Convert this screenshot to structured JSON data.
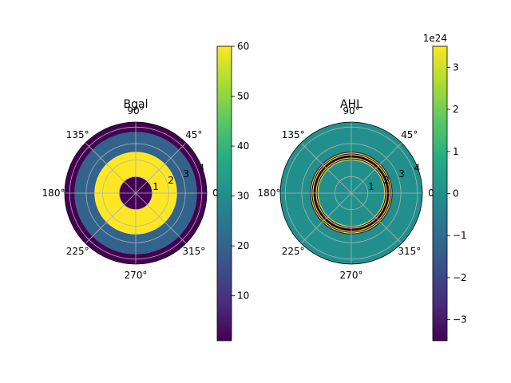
{
  "chart_data": [
    {
      "type": "heatmap",
      "projection": "polar",
      "title": "Bgal",
      "angle_ticks": [
        "0°",
        "45°",
        "90°",
        "135°",
        "180°",
        "225°",
        "270°",
        "315°"
      ],
      "radial_ticks": [
        "1",
        "2",
        "3",
        "4"
      ],
      "rlim": [
        0,
        4.3
      ],
      "grid": true,
      "rings": [
        {
          "r_inner": 0.0,
          "r_outer": 1.0,
          "value": 1
        },
        {
          "r_inner": 1.0,
          "r_outer": 2.5,
          "value": 60
        },
        {
          "r_inner": 2.5,
          "r_outer": 3.7,
          "value": 20
        },
        {
          "r_inner": 3.7,
          "r_outer": 4.3,
          "value": 1
        }
      ],
      "colorbar": {
        "cmap": "viridis",
        "vmin": 1,
        "vmax": 60,
        "ticks": [
          10,
          20,
          30,
          40,
          50,
          60
        ],
        "tick_labels": [
          "10",
          "20",
          "30",
          "40",
          "50",
          "60"
        ],
        "offset_label": ""
      }
    },
    {
      "type": "heatmap",
      "projection": "polar",
      "title": "AHL",
      "angle_ticks": [
        "0°",
        "45°",
        "90°",
        "135°",
        "180°",
        "225°",
        "270°",
        "315°"
      ],
      "radial_ticks": [
        "1",
        "2",
        "3",
        "4"
      ],
      "rlim": [
        0,
        4.3
      ],
      "grid": true,
      "background_value": 0,
      "oscillating_band": {
        "r_inner": 2.0,
        "r_outer": 2.5,
        "amplitude": 3.5e+24
      },
      "colorbar": {
        "cmap": "viridis",
        "vmin": -3.5e+24,
        "vmax": 3.5e+24,
        "ticks": [
          -3e+24,
          -2e+24,
          -1e+24,
          0,
          1e+24,
          2e+24,
          3e+24
        ],
        "tick_labels": [
          "−3",
          "−2",
          "−1",
          "0",
          "1",
          "2",
          "3"
        ],
        "offset_label": "1e24"
      }
    }
  ]
}
